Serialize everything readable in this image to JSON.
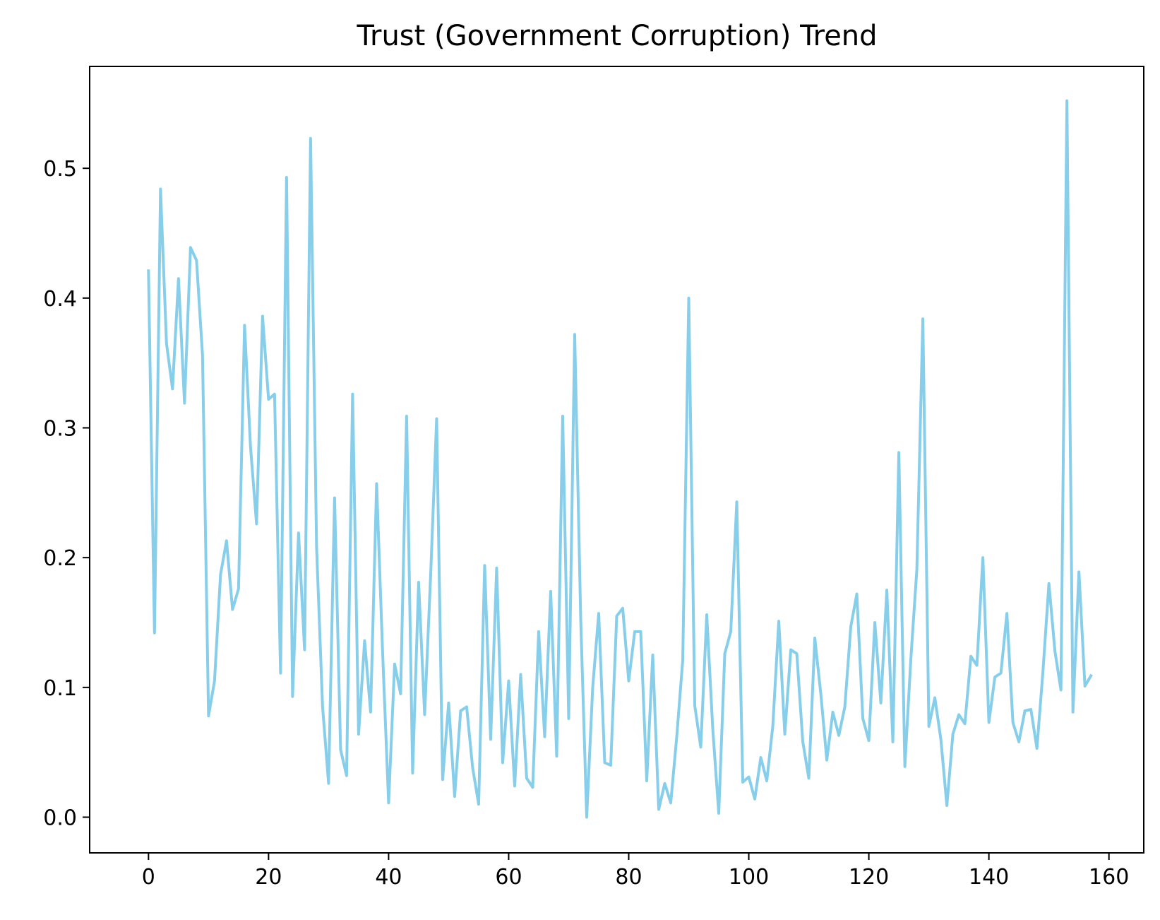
{
  "chart_data": {
    "type": "line",
    "title": "Trust (Government Corruption) Trend",
    "xlabel": "",
    "ylabel": "",
    "xlim": [
      -9.8,
      165.8
    ],
    "ylim": [
      -0.0275,
      0.5785
    ],
    "x_ticks": [
      0,
      20,
      40,
      60,
      80,
      100,
      120,
      140,
      160
    ],
    "y_ticks": [
      0.0,
      0.1,
      0.2,
      0.3,
      0.4,
      0.5
    ],
    "x_tick_labels": [
      "0",
      "20",
      "40",
      "60",
      "80",
      "100",
      "120",
      "140",
      "160"
    ],
    "y_tick_labels": [
      "0.0",
      "0.1",
      "0.2",
      "0.3",
      "0.4",
      "0.5"
    ],
    "grid": false,
    "line_color": "#87CEEB",
    "series": [
      {
        "values": [
          0.421,
          0.142,
          0.484,
          0.365,
          0.33,
          0.415,
          0.319,
          0.439,
          0.429,
          0.356,
          0.078,
          0.105,
          0.187,
          0.213,
          0.16,
          0.176,
          0.379,
          0.285,
          0.226,
          0.386,
          0.322,
          0.326,
          0.111,
          0.493,
          0.093,
          0.219,
          0.129,
          0.523,
          0.208,
          0.085,
          0.026,
          0.246,
          0.052,
          0.032,
          0.326,
          0.064,
          0.136,
          0.081,
          0.257,
          0.127,
          0.011,
          0.118,
          0.095,
          0.309,
          0.034,
          0.181,
          0.079,
          0.186,
          0.307,
          0.029,
          0.088,
          0.016,
          0.082,
          0.085,
          0.038,
          0.01,
          0.194,
          0.06,
          0.192,
          0.042,
          0.105,
          0.024,
          0.11,
          0.03,
          0.023,
          0.143,
          0.062,
          0.174,
          0.047,
          0.309,
          0.076,
          0.372,
          0.153,
          0.0,
          0.1,
          0.157,
          0.042,
          0.04,
          0.155,
          0.161,
          0.105,
          0.143,
          0.143,
          0.028,
          0.125,
          0.006,
          0.026,
          0.011,
          0.062,
          0.121,
          0.4,
          0.086,
          0.054,
          0.156,
          0.068,
          0.003,
          0.126,
          0.143,
          0.243,
          0.027,
          0.031,
          0.014,
          0.046,
          0.028,
          0.07,
          0.151,
          0.064,
          0.129,
          0.126,
          0.058,
          0.03,
          0.138,
          0.095,
          0.044,
          0.081,
          0.063,
          0.085,
          0.147,
          0.172,
          0.076,
          0.059,
          0.15,
          0.088,
          0.175,
          0.058,
          0.281,
          0.039,
          0.122,
          0.191,
          0.384,
          0.07,
          0.092,
          0.06,
          0.009,
          0.064,
          0.079,
          0.072,
          0.124,
          0.117,
          0.2,
          0.073,
          0.108,
          0.111,
          0.157,
          0.073,
          0.058,
          0.082,
          0.083,
          0.053,
          0.112,
          0.18,
          0.128,
          0.098,
          0.552,
          0.081,
          0.189,
          0.101,
          0.109
        ]
      }
    ]
  }
}
